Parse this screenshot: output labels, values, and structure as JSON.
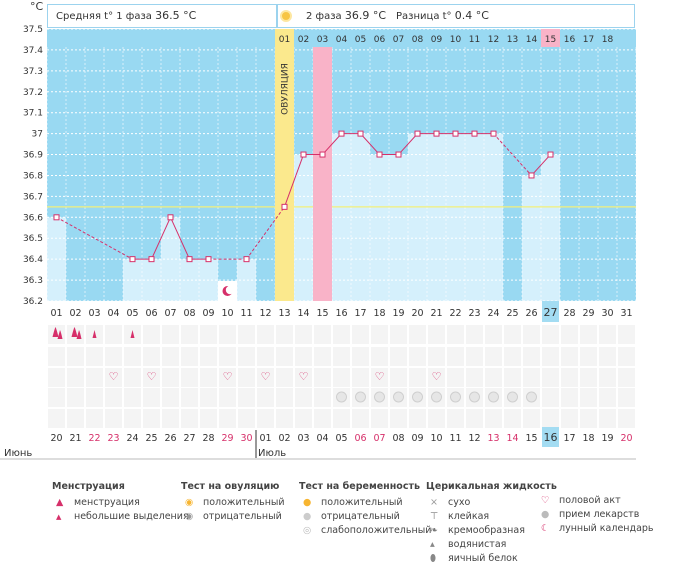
{
  "header": {
    "unit": "°C",
    "phase1_label": "Средняя t° 1 фаза",
    "phase1_value": "36.5 °C",
    "phase2_label": "2 фаза",
    "phase2_value": "36.9 °C",
    "diff_label": "Разница t°",
    "diff_value": "0.4 °C"
  },
  "ovulation_label": "ОВУЛЯЦИЯ",
  "colors": {
    "plot_bg": "#99d9f2",
    "grid": "#ffffff",
    "bar_fill": "#d5f0fc",
    "line": "#d6306a",
    "ovulation": "#fbe98d",
    "menstruation_day": "#f9b3c8",
    "coverline": "#f3f07a",
    "weekend": "#d6306a"
  },
  "chart_data": {
    "type": "line",
    "ylim": [
      36.2,
      37.5
    ],
    "y_ticks": [
      "36.2",
      "36.3",
      "36.4",
      "36.5",
      "36.6",
      "36.7",
      "36.8",
      "36.9",
      "37",
      "37.1",
      "37.2",
      "37.3",
      "37.4",
      "37.5"
    ],
    "coverline": 36.65,
    "ovulation_day": 13,
    "highlight_day": 15,
    "cycle_days": [
      "01",
      "02",
      "03",
      "04",
      "05",
      "06",
      "07",
      "08",
      "09",
      "10",
      "11",
      "12",
      "13",
      "14",
      "15",
      "16",
      "17",
      "18",
      "19",
      "20",
      "21",
      "22",
      "23",
      "24",
      "25",
      "26",
      "27",
      "28",
      "29",
      "30",
      "31"
    ],
    "current_day": 27,
    "top_days": [
      "01",
      "02",
      "03",
      "04",
      "05",
      "06",
      "07",
      "08",
      "09",
      "10",
      "11",
      "12",
      "13",
      "14",
      "15",
      "16",
      "17",
      "18"
    ],
    "top_current": 15,
    "temperatures": [
      36.6,
      null,
      null,
      null,
      36.4,
      36.4,
      36.6,
      36.4,
      36.4,
      null,
      36.4,
      null,
      36.65,
      36.9,
      36.9,
      37.0,
      37.0,
      36.9,
      36.9,
      37.0,
      37.0,
      37.0,
      37.0,
      37.0,
      null,
      36.8,
      36.9,
      null,
      null,
      null,
      null
    ],
    "moon_day": 10,
    "dates": [
      "20",
      "21",
      "22",
      "23",
      "24",
      "25",
      "26",
      "27",
      "28",
      "29",
      "30",
      "01",
      "02",
      "03",
      "04",
      "05",
      "06",
      "07",
      "08",
      "09",
      "10",
      "11",
      "12",
      "13",
      "14",
      "15",
      "16",
      "17",
      "18",
      "19",
      "20"
    ],
    "weekend_days": [
      3,
      4,
      10,
      11,
      17,
      18,
      24,
      25,
      31
    ],
    "current_date_index": 27,
    "months": [
      {
        "label": "Июнь",
        "day": 1
      },
      {
        "label": "Июль",
        "day": 12
      }
    ],
    "menstruation": {
      "heavy": [
        1,
        2
      ],
      "light": [
        3,
        5
      ]
    },
    "intercourse": [
      4,
      6,
      10,
      12,
      14,
      18,
      21
    ],
    "pills": [
      16,
      17,
      18,
      19,
      20,
      21,
      22,
      23,
      24,
      25,
      26
    ]
  },
  "legend": {
    "menstruation": {
      "title": "Менструация",
      "items": [
        "менструация",
        "небольшие выделения"
      ]
    },
    "ovulation_test": {
      "title": "Тест на овуляцию",
      "items": [
        "положительный",
        "отрицательный"
      ]
    },
    "pregnancy_test": {
      "title": "Тест на беременность",
      "items": [
        "положительный",
        "отрицательный",
        "слабоположительный"
      ]
    },
    "cervical": {
      "title": "Церикальная жидкость",
      "items": [
        "сухо",
        "клейкая",
        "кремообразная",
        "водянистая",
        "яичный белок"
      ]
    },
    "other": {
      "items": [
        "половой акт",
        "прием лекарств",
        "лунный календарь"
      ]
    }
  }
}
